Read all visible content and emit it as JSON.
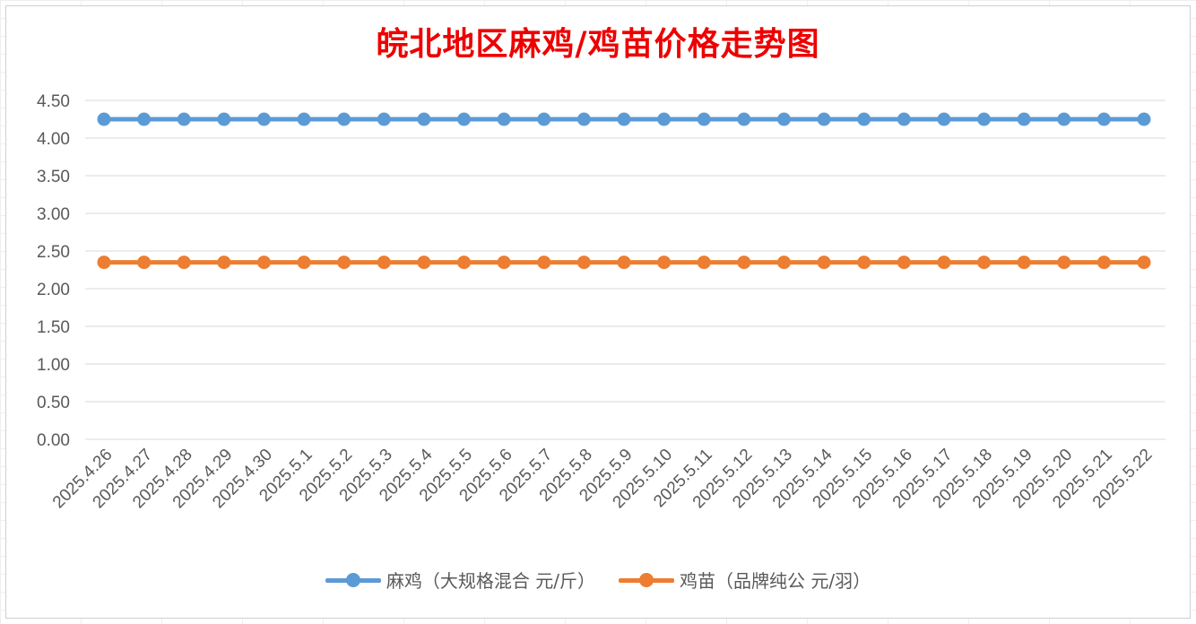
{
  "chart_data": {
    "type": "line",
    "title": "皖北地区麻鸡/鸡苗价格走势图",
    "xlabel": "",
    "ylabel": "",
    "categories": [
      "2025.4.26",
      "2025.4.27",
      "2025.4.28",
      "2025.4.29",
      "2025.4.30",
      "2025.5.1",
      "2025.5.2",
      "2025.5.3",
      "2025.5.4",
      "2025.5.5",
      "2025.5.6",
      "2025.5.7",
      "2025.5.8",
      "2025.5.9",
      "2025.5.10",
      "2025.5.11",
      "2025.5.12",
      "2025.5.13",
      "2025.5.14",
      "2025.5.15",
      "2025.5.16",
      "2025.5.17",
      "2025.5.18",
      "2025.5.19",
      "2025.5.20",
      "2025.5.21",
      "2025.5.22"
    ],
    "y_ticks": [
      "0.00",
      "0.50",
      "1.00",
      "1.50",
      "2.00",
      "2.50",
      "3.00",
      "3.50",
      "4.00",
      "4.50"
    ],
    "ylim": [
      0,
      4.5
    ],
    "grid": true,
    "legend_position": "bottom",
    "series": [
      {
        "name": "麻鸡（大规格混合 元/斤）",
        "color": "#5b9bd5",
        "values": [
          4.25,
          4.25,
          4.25,
          4.25,
          4.25,
          4.25,
          4.25,
          4.25,
          4.25,
          4.25,
          4.25,
          4.25,
          4.25,
          4.25,
          4.25,
          4.25,
          4.25,
          4.25,
          4.25,
          4.25,
          4.25,
          4.25,
          4.25,
          4.25,
          4.25,
          4.25,
          4.25
        ]
      },
      {
        "name": "鸡苗（品牌纯公 元/羽）",
        "color": "#ed7d31",
        "values": [
          2.35,
          2.35,
          2.35,
          2.35,
          2.35,
          2.35,
          2.35,
          2.35,
          2.35,
          2.35,
          2.35,
          2.35,
          2.35,
          2.35,
          2.35,
          2.35,
          2.35,
          2.35,
          2.35,
          2.35,
          2.35,
          2.35,
          2.35,
          2.35,
          2.35,
          2.35,
          2.35
        ]
      }
    ]
  }
}
